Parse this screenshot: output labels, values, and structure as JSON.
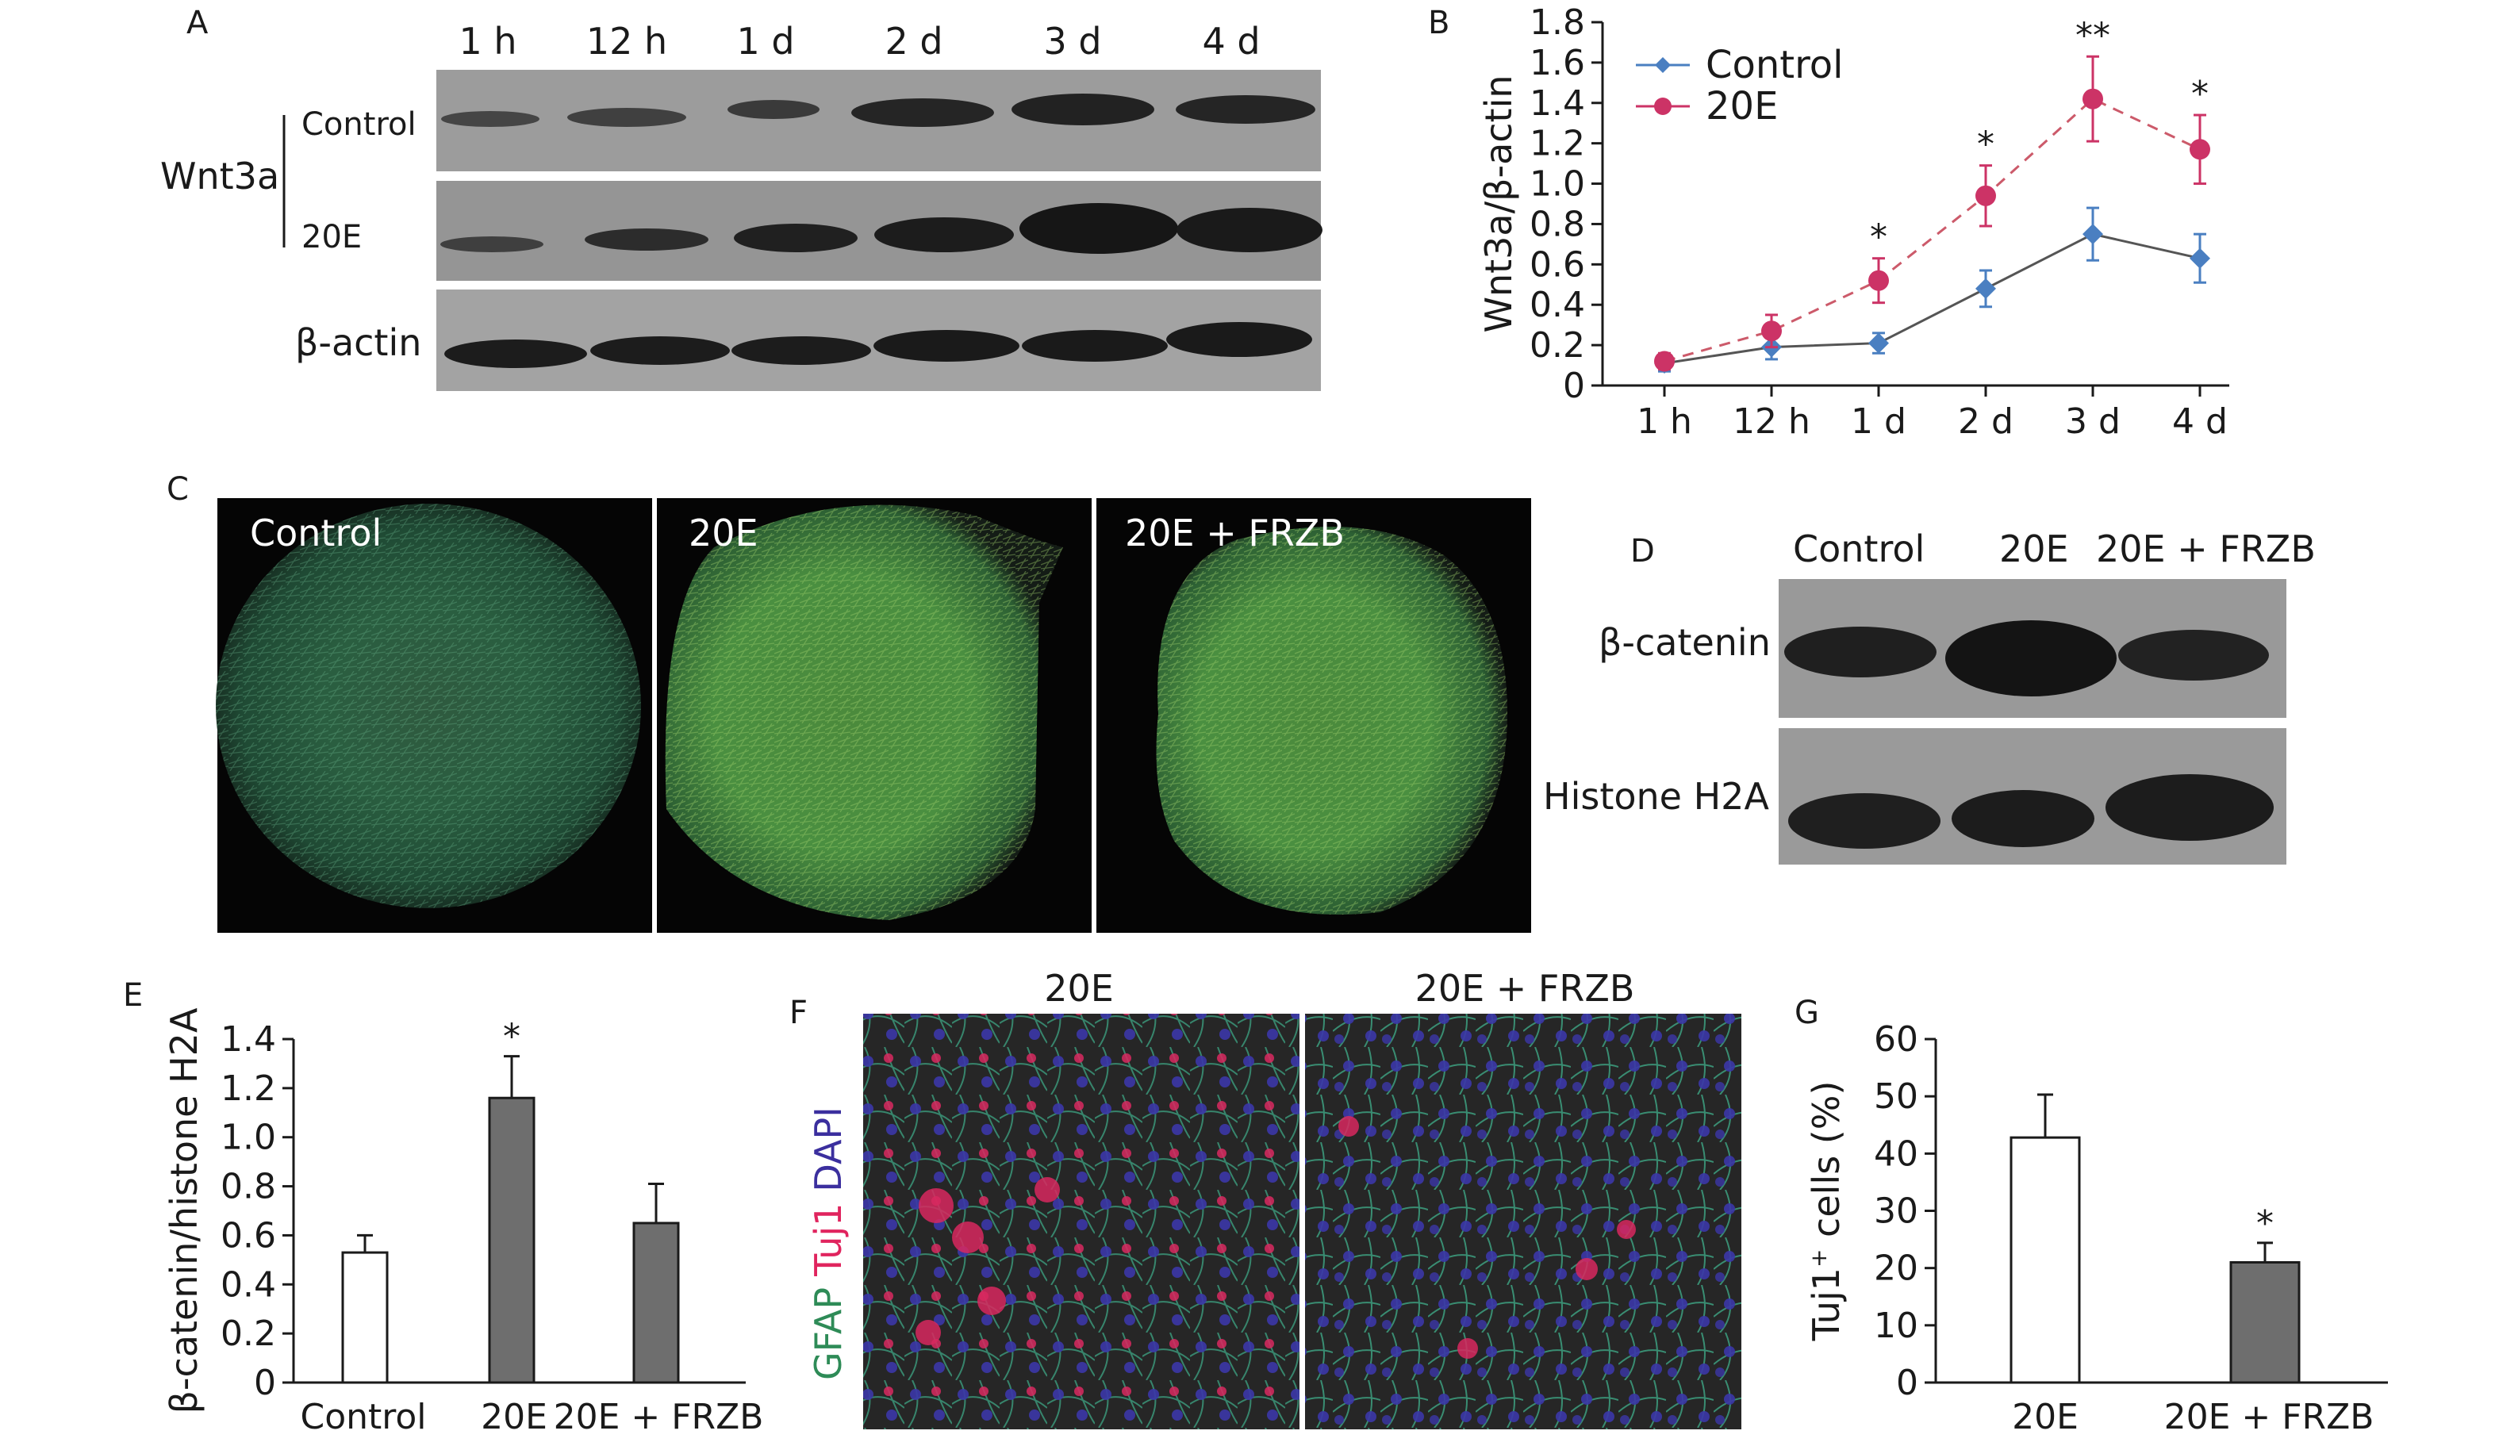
{
  "panels": {
    "A": {
      "letter": "A",
      "time_labels": [
        "1 h",
        "12 h",
        "1 d",
        "2 d",
        "3 d",
        "4 d"
      ],
      "protein": "Wnt3a",
      "row_labels": [
        "Control",
        "20E"
      ],
      "loading_label": "β-actin"
    },
    "B": {
      "letter": "B"
    },
    "C": {
      "letter": "C",
      "image_labels": [
        "Control",
        "20E",
        "20E + FRZB"
      ]
    },
    "D": {
      "letter": "D",
      "lane_labels": [
        "Control",
        "20E",
        "20E + FRZB"
      ],
      "row_labels": [
        "β-catenin",
        "Histone H2A"
      ]
    },
    "E": {
      "letter": "E"
    },
    "F": {
      "letter": "F",
      "image_labels": [
        "20E",
        "20E + FRZB"
      ],
      "stain_labels": [
        "GFAP",
        "Tuj1",
        "DAPI"
      ],
      "stain_colors": [
        "#2e8b57",
        "#e0245e",
        "#3b2f9e"
      ]
    },
    "G": {
      "letter": "G"
    }
  },
  "chart_data": [
    {
      "id": "B",
      "type": "line",
      "categories": [
        "1 h",
        "12 h",
        "1 d",
        "2 d",
        "3 d",
        "4 d"
      ],
      "ylabel": "Wnt3a/β-actin",
      "ylim": [
        0,
        1.8
      ],
      "yticks": [
        "0",
        "0.2",
        "0.4",
        "0.6",
        "0.8",
        "1.0",
        "1.2",
        "1.4",
        "1.6",
        "1.8"
      ],
      "legend_position": "top-left",
      "series": [
        {
          "name": "Control",
          "color": "#4a7fc1",
          "values": [
            0.11,
            0.19,
            0.21,
            0.48,
            0.75,
            0.63
          ],
          "errors": [
            0.04,
            0.06,
            0.05,
            0.09,
            0.13,
            0.12
          ]
        },
        {
          "name": "20E",
          "color": "#cc3366",
          "values": [
            0.12,
            0.27,
            0.52,
            0.94,
            1.42,
            1.17
          ],
          "errors": [
            0.04,
            0.08,
            0.11,
            0.15,
            0.21,
            0.17
          ]
        }
      ],
      "significance": [
        "",
        "",
        "*",
        "*",
        "**",
        "*"
      ]
    },
    {
      "id": "E",
      "type": "bar",
      "categories": [
        "Control",
        "20E",
        "20E + FRZB"
      ],
      "values": [
        0.53,
        1.16,
        0.65
      ],
      "errors": [
        0.07,
        0.17,
        0.16
      ],
      "bar_fills": [
        "#ffffff",
        "#6e6e6e",
        "#6e6e6e"
      ],
      "significance": [
        "",
        "*",
        ""
      ],
      "ylabel": "β-catenin/histone H2A",
      "ylim": [
        0,
        1.4
      ],
      "yticks": [
        "0",
        "0.2",
        "0.4",
        "0.6",
        "0.8",
        "1.0",
        "1.2",
        "1.4"
      ]
    },
    {
      "id": "G",
      "type": "bar",
      "categories": [
        "20E",
        "20E + FRZB"
      ],
      "values": [
        42.8,
        21.0
      ],
      "errors": [
        7.5,
        3.4
      ],
      "bar_fills": [
        "#ffffff",
        "#6e6e6e"
      ],
      "significance": [
        "",
        "*"
      ],
      "ylabel_main": "Tuj1",
      "ylabel_sup": "+",
      "ylabel_rest": " cells (%)",
      "ylim": [
        0,
        60
      ],
      "yticks": [
        "0",
        "10",
        "20",
        "30",
        "40",
        "50",
        "60"
      ]
    }
  ]
}
